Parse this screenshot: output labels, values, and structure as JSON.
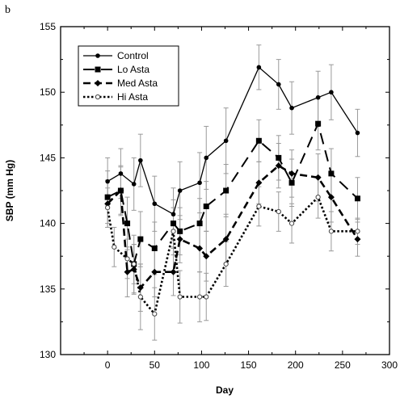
{
  "chart_data": {
    "type": "line",
    "panel_label": "b",
    "xlabel": "Day",
    "ylabel": "SBP (mm Hg)",
    "xlim": [
      -50,
      300
    ],
    "ylim": [
      130,
      155
    ],
    "xticks": [
      0,
      50,
      100,
      150,
      200,
      250,
      300
    ],
    "yticks": [
      130,
      135,
      140,
      145,
      150,
      155
    ],
    "grid": false,
    "legend_position": "top-left",
    "series": [
      {
        "name": "Control",
        "line_style": "solid",
        "marker": "circle",
        "points": [
          {
            "x": 0,
            "y": 143.2,
            "err": 1.8
          },
          {
            "x": 14,
            "y": 143.8,
            "err": 1.9
          },
          {
            "x": 28,
            "y": 143.0,
            "err": 2.0
          },
          {
            "x": 35,
            "y": 144.8,
            "err": 2.0
          },
          {
            "x": 50,
            "y": 141.5,
            "err": 2.1
          },
          {
            "x": 70,
            "y": 140.7,
            "err": 2.0
          },
          {
            "x": 77,
            "y": 142.5,
            "err": 2.2
          },
          {
            "x": 98,
            "y": 143.1,
            "err": 2.3
          },
          {
            "x": 105,
            "y": 145.0,
            "err": 2.4
          },
          {
            "x": 126,
            "y": 146.3,
            "err": 2.5
          },
          {
            "x": 161,
            "y": 151.9,
            "err": 1.7
          },
          {
            "x": 182,
            "y": 150.6,
            "err": 1.9
          },
          {
            "x": 196,
            "y": 148.8,
            "err": 2.0
          },
          {
            "x": 224,
            "y": 149.6,
            "err": 2.0
          },
          {
            "x": 238,
            "y": 150.0,
            "err": 2.1
          },
          {
            "x": 266,
            "y": 146.9,
            "err": 1.8
          }
        ]
      },
      {
        "name": "Lo Asta",
        "line_style": "long-dash",
        "marker": "square",
        "points": [
          {
            "x": 0,
            "y": 142.0,
            "err": 2.0
          },
          {
            "x": 14,
            "y": 142.5,
            "err": 1.9
          },
          {
            "x": 21,
            "y": 140.0,
            "err": 2.0
          },
          {
            "x": 28,
            "y": 136.9,
            "err": 2.2
          },
          {
            "x": 35,
            "y": 138.8,
            "err": 2.1
          },
          {
            "x": 50,
            "y": 138.1,
            "err": 2.0
          },
          {
            "x": 70,
            "y": 140.0,
            "err": 1.8
          },
          {
            "x": 77,
            "y": 139.4,
            "err": 1.8
          },
          {
            "x": 98,
            "y": 140.0,
            "err": 1.9
          },
          {
            "x": 105,
            "y": 141.3,
            "err": 1.9
          },
          {
            "x": 126,
            "y": 142.5,
            "err": 2.0
          },
          {
            "x": 161,
            "y": 146.3,
            "err": 1.6
          },
          {
            "x": 182,
            "y": 145.0,
            "err": 1.7
          },
          {
            "x": 196,
            "y": 143.1,
            "err": 1.8
          },
          {
            "x": 224,
            "y": 147.6,
            "err": 2.0
          },
          {
            "x": 238,
            "y": 143.8,
            "err": 1.9
          },
          {
            "x": 266,
            "y": 141.9,
            "err": 1.6
          }
        ]
      },
      {
        "name": "Med Asta",
        "line_style": "dash",
        "marker": "diamond",
        "points": [
          {
            "x": 0,
            "y": 141.5,
            "err": 1.8
          },
          {
            "x": 14,
            "y": 142.5,
            "err": 1.8
          },
          {
            "x": 21,
            "y": 136.3,
            "err": 1.9
          },
          {
            "x": 28,
            "y": 136.5,
            "err": 1.9
          },
          {
            "x": 35,
            "y": 135.1,
            "err": 1.8
          },
          {
            "x": 50,
            "y": 136.3,
            "err": 1.9
          },
          {
            "x": 70,
            "y": 136.3,
            "err": 1.8
          },
          {
            "x": 77,
            "y": 138.8,
            "err": 1.8
          },
          {
            "x": 98,
            "y": 138.1,
            "err": 1.8
          },
          {
            "x": 105,
            "y": 137.5,
            "err": 1.9
          },
          {
            "x": 126,
            "y": 138.8,
            "err": 1.9
          },
          {
            "x": 161,
            "y": 143.1,
            "err": 1.6
          },
          {
            "x": 182,
            "y": 144.4,
            "err": 1.7
          },
          {
            "x": 196,
            "y": 143.8,
            "err": 1.8
          },
          {
            "x": 224,
            "y": 143.5,
            "err": 1.8
          },
          {
            "x": 238,
            "y": 142.0,
            "err": 1.9
          },
          {
            "x": 266,
            "y": 138.8,
            "err": 1.3
          }
        ]
      },
      {
        "name": "Hi Asta",
        "line_style": "dotted",
        "marker": "open-circle",
        "points": [
          {
            "x": 0,
            "y": 141.2,
            "err": 1.5
          },
          {
            "x": 7,
            "y": 138.2,
            "err": 1.5
          },
          {
            "x": 21,
            "y": 137.3,
            "err": 1.5
          },
          {
            "x": 28,
            "y": 136.9,
            "err": 1.5
          },
          {
            "x": 35,
            "y": 134.4,
            "err": 2.5
          },
          {
            "x": 50,
            "y": 133.1,
            "err": 2.0
          },
          {
            "x": 70,
            "y": 139.4,
            "err": 1.8
          },
          {
            "x": 77,
            "y": 134.4,
            "err": 2.0
          },
          {
            "x": 98,
            "y": 134.4,
            "err": 1.9
          },
          {
            "x": 105,
            "y": 134.4,
            "err": 1.8
          },
          {
            "x": 126,
            "y": 136.9,
            "err": 1.7
          },
          {
            "x": 161,
            "y": 141.3,
            "err": 1.5
          },
          {
            "x": 182,
            "y": 140.9,
            "err": 1.5
          },
          {
            "x": 196,
            "y": 140.0,
            "err": 1.5
          },
          {
            "x": 224,
            "y": 142.0,
            "err": 1.6
          },
          {
            "x": 238,
            "y": 139.4,
            "err": 1.5
          },
          {
            "x": 266,
            "y": 139.4,
            "err": 1.0
          }
        ]
      }
    ]
  }
}
